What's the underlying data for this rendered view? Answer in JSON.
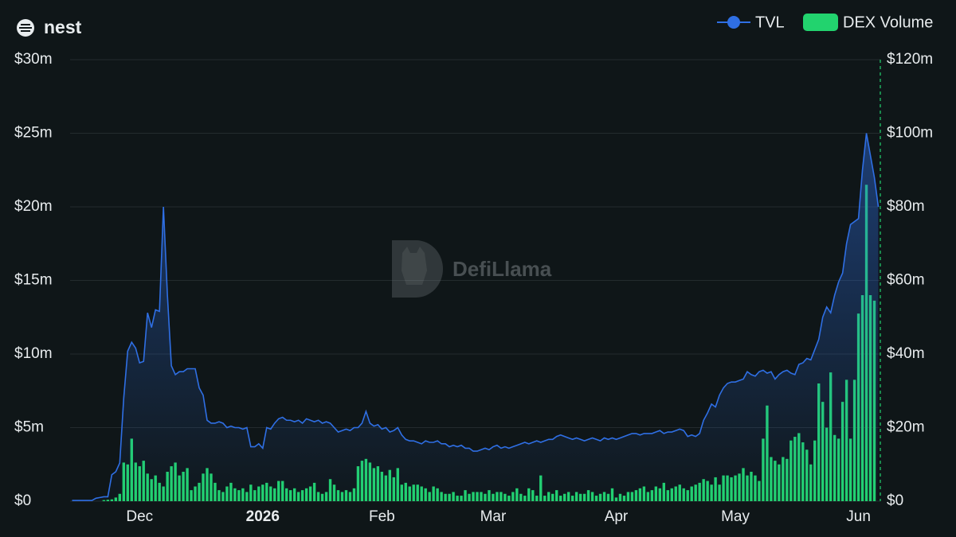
{
  "chart_data": {
    "type": "combo",
    "title": "nest",
    "watermark": "DefiLlama",
    "categories": [
      null,
      null,
      null,
      null,
      null,
      null,
      null,
      null,
      null,
      null,
      null,
      null,
      null,
      null,
      null,
      null,
      null,
      "Dec",
      null,
      null,
      null,
      null,
      null,
      null,
      null,
      null,
      null,
      null,
      null,
      null,
      null,
      null,
      null,
      null,
      null,
      null,
      null,
      null,
      null,
      null,
      null,
      null,
      null,
      null,
      null,
      null,
      null,
      null,
      "2026",
      null,
      null,
      null,
      null,
      null,
      null,
      null,
      null,
      null,
      null,
      null,
      null,
      null,
      null,
      null,
      null,
      null,
      null,
      null,
      null,
      null,
      null,
      null,
      null,
      null,
      null,
      null,
      null,
      null,
      "Feb",
      null,
      null,
      null,
      null,
      null,
      null,
      null,
      null,
      null,
      null,
      null,
      null,
      null,
      null,
      null,
      null,
      null,
      null,
      null,
      null,
      null,
      null,
      null,
      null,
      null,
      null,
      null,
      "Mar",
      null,
      null,
      null,
      null,
      null,
      null,
      null,
      null,
      null,
      null,
      null,
      null,
      null,
      null,
      null,
      null,
      null,
      null,
      null,
      null,
      null,
      null,
      null,
      null,
      null,
      null,
      null,
      null,
      null,
      null,
      "Apr",
      null,
      null,
      null,
      null,
      null,
      null,
      null,
      null,
      null,
      null,
      null,
      null,
      null,
      null,
      null,
      null,
      null,
      null,
      null,
      null,
      null,
      null,
      null,
      null,
      null,
      null,
      null,
      null,
      null,
      "May",
      null,
      null,
      null,
      null,
      null,
      null,
      null,
      null,
      null,
      null,
      null,
      null,
      null,
      null,
      null,
      null,
      null,
      null,
      null,
      null,
      null,
      null,
      null,
      null,
      null,
      null,
      null,
      null,
      null,
      null,
      "Jun",
      null,
      null,
      null,
      null,
      null
    ],
    "series": [
      {
        "name": "TVL",
        "type": "line",
        "color": "#2f6fe4",
        "values": [
          0.05,
          0.05,
          0.05,
          0.05,
          0.05,
          0.05,
          0.2,
          0.25,
          0.3,
          0.3,
          1.8,
          2.0,
          2.6,
          7.0,
          10.2,
          10.8,
          10.4,
          9.4,
          9.5,
          12.8,
          11.8,
          13.0,
          12.9,
          20.0,
          14.0,
          9.2,
          8.6,
          8.8,
          8.8,
          9.0,
          9.0,
          9.0,
          7.7,
          7.2,
          5.5,
          5.3,
          5.3,
          5.4,
          5.3,
          5.0,
          5.1,
          5.0,
          5.0,
          4.9,
          5.0,
          3.7,
          3.7,
          3.9,
          3.6,
          5.0,
          4.9,
          5.3,
          5.6,
          5.7,
          5.5,
          5.5,
          5.4,
          5.5,
          5.3,
          5.6,
          5.5,
          5.4,
          5.5,
          5.3,
          5.4,
          5.3,
          5.0,
          4.7,
          4.8,
          4.9,
          4.8,
          5.0,
          5.0,
          5.3,
          6.1,
          5.3,
          5.1,
          5.2,
          4.9,
          5.0,
          4.7,
          4.8,
          5.0,
          4.5,
          4.2,
          4.1,
          4.1,
          4.0,
          3.9,
          4.1,
          4.0,
          4.0,
          4.1,
          3.9,
          3.9,
          3.7,
          3.8,
          3.7,
          3.8,
          3.6,
          3.6,
          3.4,
          3.4,
          3.5,
          3.6,
          3.5,
          3.7,
          3.8,
          3.6,
          3.7,
          3.6,
          3.7,
          3.8,
          3.9,
          4.0,
          3.9,
          4.0,
          4.1,
          4.0,
          4.1,
          4.2,
          4.2,
          4.4,
          4.5,
          4.4,
          4.3,
          4.2,
          4.3,
          4.2,
          4.1,
          4.2,
          4.3,
          4.2,
          4.1,
          4.3,
          4.2,
          4.3,
          4.2,
          4.3,
          4.4,
          4.5,
          4.6,
          4.6,
          4.5,
          4.6,
          4.6,
          4.6,
          4.7,
          4.8,
          4.6,
          4.7,
          4.7,
          4.8,
          4.9,
          4.8,
          4.4,
          4.5,
          4.4,
          4.6,
          5.5,
          6.0,
          6.6,
          6.4,
          7.2,
          7.7,
          8.0,
          8.1,
          8.1,
          8.2,
          8.3,
          8.8,
          8.6,
          8.5,
          8.8,
          8.9,
          8.7,
          8.8,
          8.3,
          8.6,
          8.8,
          8.9,
          8.7,
          8.6,
          9.3,
          9.4,
          9.7,
          9.6,
          10.3,
          11.0,
          12.5,
          13.2,
          12.8,
          14.0,
          14.9,
          15.5,
          17.5,
          18.8,
          19.0,
          19.2,
          22.5,
          25.0,
          23.5,
          22.0,
          20.0
        ]
      },
      {
        "name": "DEX Volume",
        "type": "bar",
        "axis": "y2",
        "color": "#22d36e",
        "values": [
          0,
          0,
          0,
          0,
          0,
          0,
          0,
          0,
          0.3,
          0.4,
          0.5,
          1,
          2,
          10.5,
          10,
          17,
          10.5,
          9.5,
          11,
          7.5,
          6,
          7,
          5,
          4,
          8,
          9.5,
          10.5,
          7,
          8,
          9,
          3,
          4,
          5,
          7.5,
          9,
          7.5,
          5,
          3,
          2.5,
          4,
          5,
          3.5,
          3,
          3.5,
          2.5,
          4.5,
          3,
          4,
          4.5,
          5,
          4,
          3.5,
          5.5,
          5.5,
          3.5,
          3,
          3.5,
          2.5,
          3,
          3.5,
          4,
          5,
          2.5,
          2,
          2.5,
          6,
          4.5,
          3,
          2.5,
          3,
          2.5,
          3.5,
          9.5,
          11,
          11.5,
          10.5,
          9,
          9.5,
          8,
          7,
          8.5,
          6.5,
          9,
          4.5,
          5,
          4,
          4.5,
          4.5,
          4,
          3.5,
          2.5,
          4,
          3.5,
          2.5,
          2,
          2,
          2.5,
          1.5,
          1.5,
          3,
          2,
          2.5,
          2.5,
          2.5,
          2,
          3,
          2,
          2.5,
          2.5,
          2,
          1.5,
          2.5,
          3.5,
          2,
          1.5,
          3.5,
          3,
          1.5,
          7,
          1.5,
          2.5,
          2,
          3,
          1.5,
          2,
          2.5,
          1.5,
          2.5,
          2,
          2,
          3,
          2.5,
          1.5,
          2,
          2.5,
          2,
          3.5,
          1,
          2,
          1.5,
          2.5,
          2.5,
          3,
          3.5,
          4,
          2.5,
          3,
          4,
          3.5,
          5,
          3,
          3.5,
          4,
          4.5,
          3.5,
          3,
          4,
          4.5,
          5,
          6,
          5.5,
          4.5,
          6.5,
          4.5,
          7,
          7,
          6.5,
          7,
          7.5,
          9,
          7,
          8,
          7,
          5.5,
          17,
          26,
          12,
          11,
          10,
          12,
          11.5,
          16.5,
          17.5,
          18.5,
          16,
          14,
          10,
          16.5,
          32,
          27,
          20,
          35,
          18,
          17,
          27,
          33,
          17,
          33,
          51,
          56,
          86,
          56,
          54.5,
          null
        ]
      }
    ],
    "ylim": [
      0,
      30
    ],
    "yticks": [
      {
        "value": 0,
        "label": "$0"
      },
      {
        "value": 5,
        "label": "$5m"
      },
      {
        "value": 10,
        "label": "$10m"
      },
      {
        "value": 15,
        "label": "$15m"
      },
      {
        "value": 20,
        "label": "$20m"
      },
      {
        "value": 25,
        "label": "$25m"
      },
      {
        "value": 30,
        "label": "$30m"
      }
    ],
    "y2lim": [
      0,
      120
    ],
    "y2ticks": [
      {
        "value": 0,
        "label": "$0"
      },
      {
        "value": 20,
        "label": "$20m"
      },
      {
        "value": 40,
        "label": "$40m"
      },
      {
        "value": 60,
        "label": "$60m"
      },
      {
        "value": 80,
        "label": "$80m"
      },
      {
        "value": 100,
        "label": "$100m"
      },
      {
        "value": 120,
        "label": "$120m"
      }
    ],
    "grid": true
  }
}
